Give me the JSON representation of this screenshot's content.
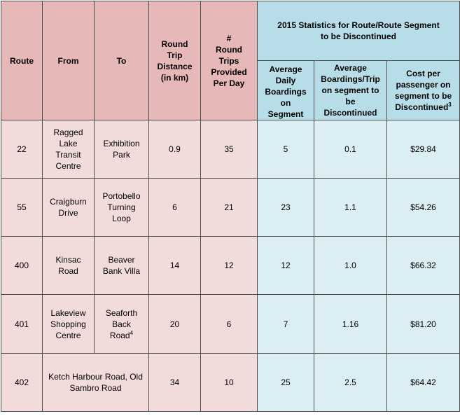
{
  "table": {
    "headers": {
      "route": "Route",
      "from": "From",
      "to": "To",
      "distance": [
        "Round",
        "Trip",
        "Distance",
        "(in km)"
      ],
      "trips": [
        "#",
        "Round",
        "Trips",
        "Provided",
        "Per Day"
      ],
      "stats_title": [
        "2015 Statistics for Route/Route Segment",
        "to be  Discontinued"
      ],
      "avg_daily": [
        "Average",
        "Daily",
        "Boardings",
        "on",
        "Segment"
      ],
      "avg_trip": [
        "Average",
        "Boardings/Trip",
        "on segment to",
        "be",
        "Discontinued"
      ],
      "cost": [
        "Cost per",
        "passenger on",
        "segment to be",
        "Discontinued"
      ],
      "cost_sup": "3"
    },
    "rows": [
      {
        "route": "22",
        "from": [
          "Ragged",
          "Lake",
          "Transit",
          "Centre"
        ],
        "to": [
          "Exhibition",
          "Park"
        ],
        "distance": "0.9",
        "trips": "35",
        "avg_daily": "5",
        "avg_trip": "0.1",
        "cost": "$29.84"
      },
      {
        "route": "55",
        "from": [
          "Craigburn",
          "Drive"
        ],
        "to": [
          "Portobello",
          "Turning",
          "Loop"
        ],
        "distance": "6",
        "trips": "21",
        "avg_daily": "23",
        "avg_trip": "1.1",
        "cost": "$54.26"
      },
      {
        "route": "400",
        "from": [
          "Kinsac",
          "Road"
        ],
        "to": [
          "Beaver",
          "Bank Villa"
        ],
        "distance": "14",
        "trips": "12",
        "avg_daily": "12",
        "avg_trip": "1.0",
        "cost": "$66.32"
      },
      {
        "route": "401",
        "from": [
          "Lakeview",
          "Shopping",
          "Centre"
        ],
        "to": [
          "Seaforth",
          "Back",
          "Road"
        ],
        "to_sup": "4",
        "distance": "20",
        "trips": "6",
        "avg_daily": "7",
        "avg_trip": "1.16",
        "cost": "$81.20"
      },
      {
        "route": "402",
        "from_to": [
          "Ketch Harbour Road, Old",
          "Sambro Road"
        ],
        "distance": "34",
        "trips": "10",
        "avg_daily": "25",
        "avg_trip": "2.5",
        "cost": "$64.42"
      }
    ]
  }
}
